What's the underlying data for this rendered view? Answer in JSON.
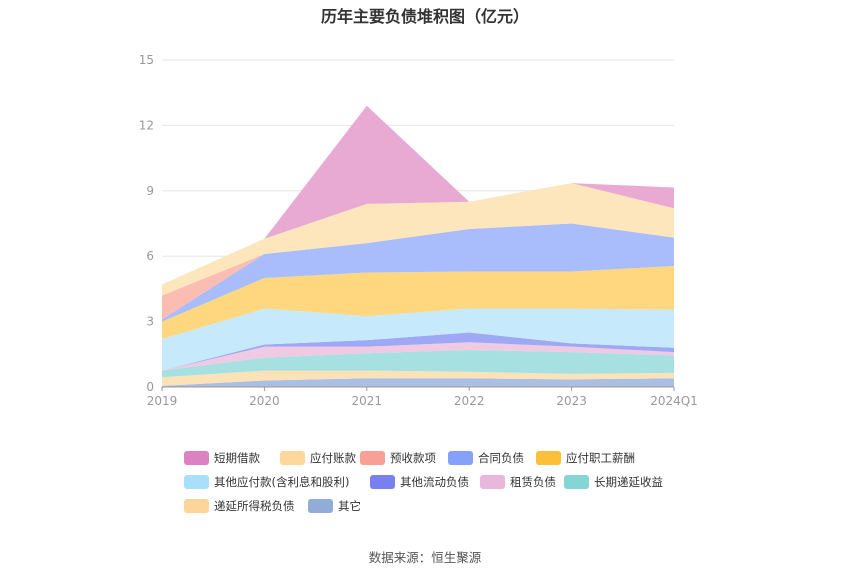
{
  "title": "历年主要负债堆积图（亿元）",
  "source": "数据来源：恒生聚源",
  "chart_data": {
    "type": "area",
    "stacked": true,
    "title": "历年主要负债堆积图（亿元）",
    "categories": [
      "2019",
      "2020",
      "2021",
      "2022",
      "2023",
      "2024Q1"
    ],
    "ylim": [
      0,
      15
    ],
    "yticks": [
      0,
      3,
      6,
      9,
      12,
      15
    ],
    "grid": true,
    "legend_position": "bottom",
    "series": [
      {
        "name": "其它",
        "color": "#a9bfe3",
        "values": [
          0.05,
          0.3,
          0.4,
          0.4,
          0.35,
          0.4
        ]
      },
      {
        "name": "递延所得税负债",
        "color": "#fde2b8",
        "values": [
          0.4,
          0.45,
          0.35,
          0.3,
          0.25,
          0.25
        ]
      },
      {
        "name": "长期递延收益",
        "color": "#a6e0e0",
        "values": [
          0.3,
          0.6,
          0.8,
          1.0,
          1.0,
          0.8
        ]
      },
      {
        "name": "租赁负债",
        "color": "#f0c9e3",
        "values": [
          0.0,
          0.5,
          0.3,
          0.35,
          0.25,
          0.15
        ]
      },
      {
        "name": "其他流动负债",
        "color": "#9fa8f5",
        "values": [
          0.0,
          0.1,
          0.3,
          0.45,
          0.15,
          0.2
        ]
      },
      {
        "name": "其他应付款(含利息和股利)",
        "color": "#c6e9fb",
        "values": [
          1.45,
          1.65,
          1.1,
          1.1,
          1.6,
          1.75
        ]
      },
      {
        "name": "应付职工薪酬",
        "color": "#fed77e",
        "values": [
          0.8,
          1.4,
          2.0,
          1.7,
          1.7,
          2.0
        ]
      },
      {
        "name": "合同负债",
        "color": "#a9bcfc",
        "values": [
          0.1,
          1.1,
          1.35,
          1.95,
          2.2,
          1.3
        ]
      },
      {
        "name": "预收款项",
        "color": "#fbbdb2",
        "values": [
          1.1,
          0.0,
          0.0,
          0.0,
          0.0,
          0.0
        ]
      },
      {
        "name": "应付账款",
        "color": "#fde5bc",
        "values": [
          0.5,
          0.7,
          1.8,
          1.25,
          1.85,
          1.35
        ]
      },
      {
        "name": "短期借款",
        "color": "#e8a9d2",
        "values": [
          0.0,
          0.0,
          4.5,
          0.0,
          0.0,
          0.95
        ]
      }
    ]
  },
  "legend": [
    {
      "name": "短期借款",
      "color": "#dd82c0"
    },
    {
      "name": "应付账款",
      "color": "#fdd89a"
    },
    {
      "name": "预收款项",
      "color": "#f9a095"
    },
    {
      "name": "合同负债",
      "color": "#86a2f8"
    },
    {
      "name": "应付职工薪酬",
      "color": "#fbbf3a"
    },
    {
      "name": "其他应付款(含利息和股利)",
      "color": "#a9dffa"
    },
    {
      "name": "其他流动负债",
      "color": "#7a7ff0"
    },
    {
      "name": "租赁负债",
      "color": "#e8b7db"
    },
    {
      "name": "长期递延收益",
      "color": "#86d5d5"
    },
    {
      "name": "递延所得税负债",
      "color": "#fdd59b"
    },
    {
      "name": "其它",
      "color": "#92acd8"
    }
  ]
}
